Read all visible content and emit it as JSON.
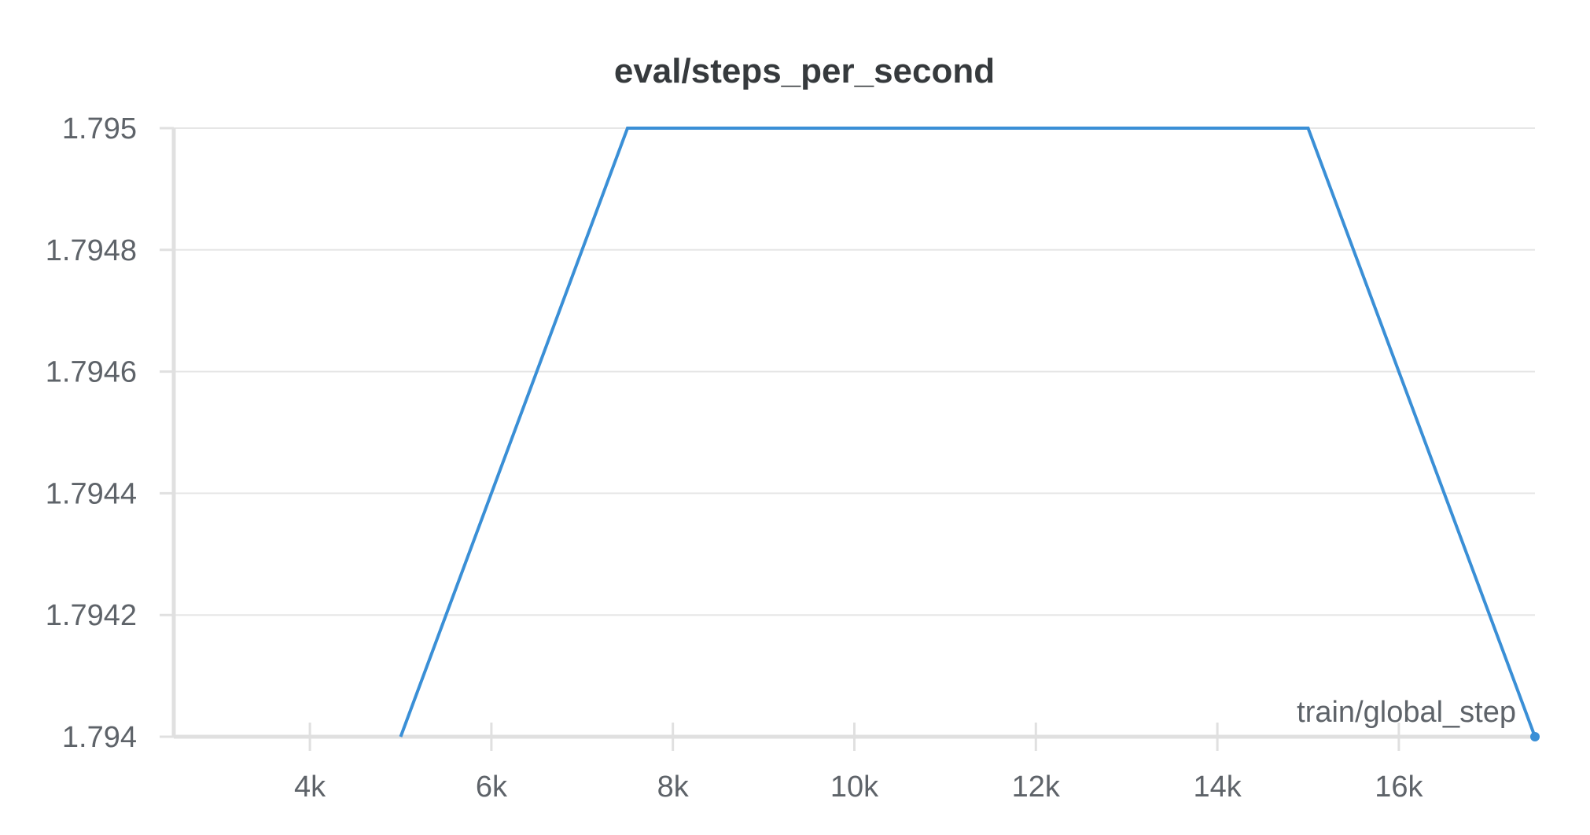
{
  "chart_data": {
    "type": "line",
    "title": "eval/steps_per_second",
    "xlabel": "train/global_step",
    "ylabel": "",
    "xlim": [
      2500,
      17500
    ],
    "ylim": [
      1.794,
      1.795
    ],
    "x_ticks": [
      4000,
      6000,
      8000,
      10000,
      12000,
      14000,
      16000
    ],
    "x_tick_labels": [
      "4k",
      "6k",
      "8k",
      "10k",
      "12k",
      "14k",
      "16k"
    ],
    "y_ticks": [
      1.794,
      1.7942,
      1.7944,
      1.7946,
      1.7948,
      1.795
    ],
    "y_tick_labels": [
      "1.794",
      "1.7942",
      "1.7944",
      "1.7946",
      "1.7948",
      "1.795"
    ],
    "grid": true,
    "series": [
      {
        "color": "#3a8fd6",
        "x": [
          5000,
          7500,
          15000,
          17500
        ],
        "y": [
          1.794,
          1.795,
          1.795,
          1.794
        ]
      }
    ]
  }
}
